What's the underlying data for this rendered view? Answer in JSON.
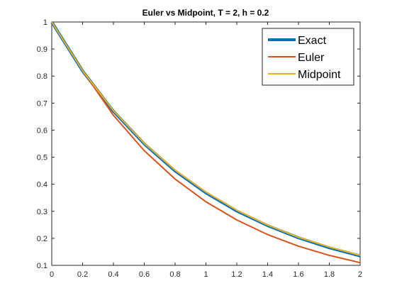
{
  "chart_data": {
    "type": "line",
    "title": "Euler vs Midpoint, T = 2, h = 0.2",
    "xlabel": "",
    "ylabel": "",
    "xlim": [
      0,
      2
    ],
    "ylim": [
      0.1,
      1
    ],
    "xticks": [
      "0",
      "0.2",
      "0.4",
      "0.6",
      "0.8",
      "1",
      "1.2",
      "1.4",
      "1.6",
      "1.8",
      "2"
    ],
    "yticks": [
      "0.1",
      "0.2",
      "0.3",
      "0.4",
      "0.5",
      "0.6",
      "0.7",
      "0.8",
      "0.9",
      "1"
    ],
    "grid": false,
    "legend_position": "top-right",
    "x": [
      0,
      0.2,
      0.4,
      0.6,
      0.8,
      1.0,
      1.2,
      1.4,
      1.6,
      1.8,
      2.0
    ],
    "series": [
      {
        "name": "Exact",
        "color": "#0072BD",
        "values": [
          1.0,
          0.819,
          0.67,
          0.549,
          0.449,
          0.368,
          0.301,
          0.247,
          0.202,
          0.165,
          0.135
        ]
      },
      {
        "name": "Euler",
        "color": "#D95319",
        "values": [
          1.0,
          0.82,
          0.655,
          0.524,
          0.419,
          0.335,
          0.268,
          0.214,
          0.171,
          0.137,
          0.11
        ]
      },
      {
        "name": "Midpoint",
        "color": "#EDB120",
        "values": [
          1.0,
          0.82,
          0.672,
          0.551,
          0.452,
          0.371,
          0.304,
          0.249,
          0.204,
          0.168,
          0.137
        ]
      }
    ]
  }
}
